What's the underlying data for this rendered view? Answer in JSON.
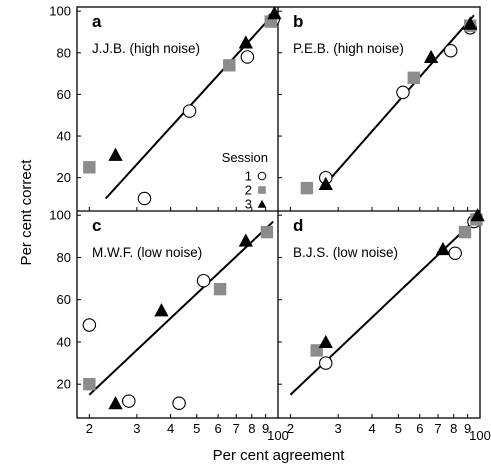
{
  "chart_data": {
    "type": "scatter",
    "xlabel": "Per cent agreement",
    "ylabel": "Per cent correct",
    "x_scale": "log",
    "x_tick_labels": [
      "2",
      "3",
      "4",
      "5",
      "6",
      "7",
      "8",
      "9",
      "100"
    ],
    "y_tick_labels": [
      "20",
      "40",
      "60",
      "80",
      "100"
    ],
    "legend": {
      "title": "Session",
      "entries": [
        {
          "label": "1",
          "marker": "open-circle"
        },
        {
          "label": "2",
          "marker": "gray-square"
        },
        {
          "label": "3",
          "marker": "black-triangle"
        }
      ],
      "placement": "panel a, lower right"
    },
    "colors": {
      "session1": "#ffffff",
      "session2": "#8c8c8c",
      "session3": "#000000"
    },
    "panels": [
      {
        "letter": "a",
        "subject": "J.J.B. (high noise)",
        "series": [
          {
            "session": "1",
            "points": [
              [
                32,
                10
              ],
              [
                47,
                52
              ],
              [
                77,
                78
              ],
              [
                96,
                96
              ]
            ]
          },
          {
            "session": "2",
            "points": [
              [
                20,
                25
              ],
              [
                66,
                74
              ],
              [
                94,
                95
              ]
            ]
          },
          {
            "session": "3",
            "points": [
              [
                25,
                31
              ],
              [
                76,
                85
              ],
              [
                97,
                99
              ]
            ]
          }
        ],
        "fit": [
          [
            23,
            10
          ],
          [
            97,
            99
          ]
        ]
      },
      {
        "letter": "b",
        "subject": "P.E.B. (high noise)",
        "series": [
          {
            "session": "1",
            "points": [
              [
                27,
                20
              ],
              [
                52,
                61
              ],
              [
                78,
                81
              ],
              [
                92,
                92
              ]
            ]
          },
          {
            "session": "2",
            "points": [
              [
                23,
                15
              ],
              [
                57,
                68
              ],
              [
                92,
                93
              ]
            ]
          },
          {
            "session": "3",
            "points": [
              [
                27,
                17
              ],
              [
                66,
                78
              ],
              [
                92,
                94
              ]
            ]
          }
        ],
        "fit": [
          [
            27,
            17
          ],
          [
            95,
            98
          ]
        ]
      },
      {
        "letter": "c",
        "subject": "M.W.F. (low noise)",
        "series": [
          {
            "session": "1",
            "points": [
              [
                20,
                48
              ],
              [
                28,
                12
              ],
              [
                43,
                11
              ],
              [
                53,
                69
              ]
            ]
          },
          {
            "session": "2",
            "points": [
              [
                20,
                20
              ],
              [
                61,
                65
              ],
              [
                91,
                92
              ]
            ]
          },
          {
            "session": "3",
            "points": [
              [
                25,
                11
              ],
              [
                37,
                55
              ],
              [
                76,
                88
              ]
            ]
          }
        ],
        "fit": [
          [
            20,
            15
          ],
          [
            96,
            97
          ]
        ]
      },
      {
        "letter": "d",
        "subject": "B.J.S. (low noise)",
        "series": [
          {
            "session": "1",
            "points": [
              [
                27,
                30
              ],
              [
                81,
                82
              ],
              [
                95,
                97
              ]
            ]
          },
          {
            "session": "2",
            "points": [
              [
                25,
                36
              ],
              [
                88,
                92
              ],
              [
                97,
                98
              ]
            ]
          },
          {
            "session": "3",
            "points": [
              [
                27,
                40
              ],
              [
                73,
                84
              ],
              [
                98,
                100
              ]
            ]
          }
        ],
        "fit": [
          [
            20,
            15
          ],
          [
            98,
            99
          ]
        ]
      }
    ]
  }
}
